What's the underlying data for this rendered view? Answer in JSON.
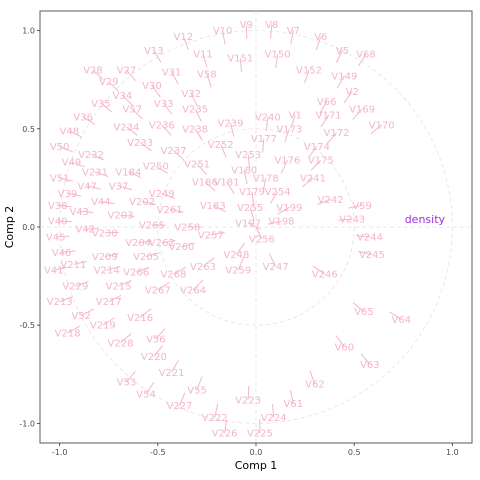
{
  "chart_data": {
    "type": "scatter",
    "title": "",
    "xlabel": "Comp 1",
    "ylabel": "Comp 2",
    "xlim": [
      -1.1,
      1.1
    ],
    "ylim": [
      -1.1,
      1.1
    ],
    "xticks": [
      "-1.0",
      "-0.5",
      "0.0",
      "0.5",
      "1.0"
    ],
    "yticks": [
      "-1.0",
      "-0.5",
      "0.0",
      "0.5",
      "1.0"
    ],
    "circles": [
      1.0,
      0.5
    ],
    "grid": false,
    "legend": "none",
    "colors": {
      "variables": "#f4b6c6",
      "highlight": "#9b30d9",
      "reference": "#e3e3e3",
      "panel_border": "#333333"
    },
    "highlight": {
      "name": "density",
      "x": 0.86,
      "y": 0.04
    },
    "points": [
      {
        "name": "V9",
        "x": -0.05,
        "y": 1.03
      },
      {
        "name": "V8",
        "x": 0.08,
        "y": 1.03
      },
      {
        "name": "V10",
        "x": -0.17,
        "y": 1.0
      },
      {
        "name": "V7",
        "x": 0.19,
        "y": 1.0
      },
      {
        "name": "V6",
        "x": 0.33,
        "y": 0.97
      },
      {
        "name": "V12",
        "x": -0.37,
        "y": 0.97
      },
      {
        "name": "V5",
        "x": 0.44,
        "y": 0.9
      },
      {
        "name": "V68",
        "x": 0.56,
        "y": 0.88
      },
      {
        "name": "V13",
        "x": -0.52,
        "y": 0.9
      },
      {
        "name": "V11",
        "x": -0.27,
        "y": 0.88
      },
      {
        "name": "V150",
        "x": 0.11,
        "y": 0.88
      },
      {
        "name": "V151",
        "x": -0.08,
        "y": 0.86
      },
      {
        "name": "V28",
        "x": -0.83,
        "y": 0.8
      },
      {
        "name": "V27",
        "x": -0.66,
        "y": 0.8
      },
      {
        "name": "V31",
        "x": -0.43,
        "y": 0.79
      },
      {
        "name": "V58",
        "x": -0.25,
        "y": 0.78
      },
      {
        "name": "V152",
        "x": 0.27,
        "y": 0.8
      },
      {
        "name": "V149",
        "x": 0.45,
        "y": 0.77
      },
      {
        "name": "V29",
        "x": -0.75,
        "y": 0.74
      },
      {
        "name": "V30",
        "x": -0.53,
        "y": 0.72
      },
      {
        "name": "V34",
        "x": -0.68,
        "y": 0.67
      },
      {
        "name": "V32",
        "x": -0.33,
        "y": 0.68
      },
      {
        "name": "V2",
        "x": 0.49,
        "y": 0.69
      },
      {
        "name": "V35",
        "x": -0.79,
        "y": 0.63
      },
      {
        "name": "V57",
        "x": -0.63,
        "y": 0.6
      },
      {
        "name": "V33",
        "x": -0.47,
        "y": 0.63
      },
      {
        "name": "V235",
        "x": -0.31,
        "y": 0.6
      },
      {
        "name": "V66",
        "x": 0.36,
        "y": 0.64
      },
      {
        "name": "V169",
        "x": 0.54,
        "y": 0.6
      },
      {
        "name": "V36",
        "x": -0.88,
        "y": 0.56
      },
      {
        "name": "V1",
        "x": 0.2,
        "y": 0.57
      },
      {
        "name": "V240",
        "x": 0.06,
        "y": 0.56
      },
      {
        "name": "V171",
        "x": 0.37,
        "y": 0.57
      },
      {
        "name": "V234",
        "x": -0.66,
        "y": 0.51
      },
      {
        "name": "V236",
        "x": -0.48,
        "y": 0.52
      },
      {
        "name": "V238",
        "x": -0.31,
        "y": 0.5
      },
      {
        "name": "V239",
        "x": -0.13,
        "y": 0.53
      },
      {
        "name": "V173",
        "x": 0.17,
        "y": 0.5
      },
      {
        "name": "V170",
        "x": 0.64,
        "y": 0.52
      },
      {
        "name": "V172",
        "x": 0.41,
        "y": 0.48
      },
      {
        "name": "V48",
        "x": -0.95,
        "y": 0.49
      },
      {
        "name": "V233",
        "x": -0.59,
        "y": 0.43
      },
      {
        "name": "V177",
        "x": 0.04,
        "y": 0.45
      },
      {
        "name": "V252",
        "x": -0.18,
        "y": 0.42
      },
      {
        "name": "V237",
        "x": -0.42,
        "y": 0.39
      },
      {
        "name": "V174",
        "x": 0.31,
        "y": 0.41
      },
      {
        "name": "V50",
        "x": -1.0,
        "y": 0.41
      },
      {
        "name": "V232",
        "x": -0.84,
        "y": 0.37
      },
      {
        "name": "V253",
        "x": -0.04,
        "y": 0.37
      },
      {
        "name": "V176",
        "x": 0.16,
        "y": 0.34
      },
      {
        "name": "V175",
        "x": 0.33,
        "y": 0.34
      },
      {
        "name": "V49",
        "x": -0.94,
        "y": 0.33
      },
      {
        "name": "V250",
        "x": -0.51,
        "y": 0.31
      },
      {
        "name": "V251",
        "x": -0.3,
        "y": 0.32
      },
      {
        "name": "V180",
        "x": -0.06,
        "y": 0.29
      },
      {
        "name": "V184",
        "x": -0.65,
        "y": 0.28
      },
      {
        "name": "V231",
        "x": -0.82,
        "y": 0.28
      },
      {
        "name": "V178",
        "x": 0.05,
        "y": 0.25
      },
      {
        "name": "V241",
        "x": 0.29,
        "y": 0.25
      },
      {
        "name": "V51",
        "x": -1.0,
        "y": 0.25
      },
      {
        "name": "V186",
        "x": -0.26,
        "y": 0.23
      },
      {
        "name": "V181",
        "x": -0.15,
        "y": 0.23
      },
      {
        "name": "V47",
        "x": -0.86,
        "y": 0.21
      },
      {
        "name": "V37",
        "x": -0.7,
        "y": 0.21
      },
      {
        "name": "V254",
        "x": 0.11,
        "y": 0.18
      },
      {
        "name": "V179",
        "x": -0.02,
        "y": 0.18
      },
      {
        "name": "V39",
        "x": -0.96,
        "y": 0.17
      },
      {
        "name": "V249",
        "x": -0.48,
        "y": 0.17
      },
      {
        "name": "V242",
        "x": 0.38,
        "y": 0.14
      },
      {
        "name": "V202",
        "x": -0.58,
        "y": 0.13
      },
      {
        "name": "V44",
        "x": -0.79,
        "y": 0.13
      },
      {
        "name": "V59",
        "x": 0.54,
        "y": 0.11
      },
      {
        "name": "V183",
        "x": -0.22,
        "y": 0.11
      },
      {
        "name": "V38",
        "x": -1.01,
        "y": 0.11
      },
      {
        "name": "V255",
        "x": -0.03,
        "y": 0.1
      },
      {
        "name": "V199",
        "x": 0.17,
        "y": 0.1
      },
      {
        "name": "V261",
        "x": -0.44,
        "y": 0.09
      },
      {
        "name": "V43",
        "x": -0.9,
        "y": 0.08
      },
      {
        "name": "V203",
        "x": -0.69,
        "y": 0.06
      },
      {
        "name": "V243",
        "x": 0.49,
        "y": 0.04
      },
      {
        "name": "V198",
        "x": 0.13,
        "y": 0.03
      },
      {
        "name": "V197",
        "x": -0.04,
        "y": 0.02
      },
      {
        "name": "V40",
        "x": -1.01,
        "y": 0.03
      },
      {
        "name": "V265",
        "x": -0.53,
        "y": 0.01
      },
      {
        "name": "V258",
        "x": -0.35,
        "y": 0.0
      },
      {
        "name": "V42",
        "x": -0.87,
        "y": -0.01
      },
      {
        "name": "V230",
        "x": -0.77,
        "y": -0.03
      },
      {
        "name": "V257",
        "x": -0.23,
        "y": -0.04
      },
      {
        "name": "V244",
        "x": 0.58,
        "y": -0.05
      },
      {
        "name": "V45",
        "x": -1.02,
        "y": -0.05
      },
      {
        "name": "V204",
        "x": -0.6,
        "y": -0.08
      },
      {
        "name": "V262",
        "x": -0.48,
        "y": -0.08
      },
      {
        "name": "V256",
        "x": 0.03,
        "y": -0.06
      },
      {
        "name": "V260",
        "x": -0.38,
        "y": -0.1
      },
      {
        "name": "V46",
        "x": -0.99,
        "y": -0.13
      },
      {
        "name": "V245",
        "x": 0.59,
        "y": -0.14
      },
      {
        "name": "V209",
        "x": -0.77,
        "y": -0.15
      },
      {
        "name": "V205",
        "x": -0.56,
        "y": -0.15
      },
      {
        "name": "V248",
        "x": -0.1,
        "y": -0.14
      },
      {
        "name": "V211",
        "x": -0.93,
        "y": -0.19
      },
      {
        "name": "V263",
        "x": -0.27,
        "y": -0.2
      },
      {
        "name": "V247",
        "x": 0.1,
        "y": -0.2
      },
      {
        "name": "V41",
        "x": -1.03,
        "y": -0.22
      },
      {
        "name": "V214",
        "x": -0.76,
        "y": -0.22
      },
      {
        "name": "V266",
        "x": -0.61,
        "y": -0.23
      },
      {
        "name": "V268",
        "x": -0.42,
        "y": -0.24
      },
      {
        "name": "V259",
        "x": -0.09,
        "y": -0.22
      },
      {
        "name": "V246",
        "x": 0.35,
        "y": -0.24
      },
      {
        "name": "V229",
        "x": -0.92,
        "y": -0.3
      },
      {
        "name": "V215",
        "x": -0.7,
        "y": -0.3
      },
      {
        "name": "V267",
        "x": -0.5,
        "y": -0.32
      },
      {
        "name": "V264",
        "x": -0.32,
        "y": -0.32
      },
      {
        "name": "V213",
        "x": -1.0,
        "y": -0.38
      },
      {
        "name": "V217",
        "x": -0.75,
        "y": -0.38
      },
      {
        "name": "V52",
        "x": -0.89,
        "y": -0.45
      },
      {
        "name": "V216",
        "x": -0.59,
        "y": -0.46
      },
      {
        "name": "V65",
        "x": 0.55,
        "y": -0.43
      },
      {
        "name": "V64",
        "x": 0.74,
        "y": -0.47
      },
      {
        "name": "V219",
        "x": -0.78,
        "y": -0.5
      },
      {
        "name": "V218",
        "x": -0.96,
        "y": -0.54
      },
      {
        "name": "V56",
        "x": -0.51,
        "y": -0.57
      },
      {
        "name": "V228",
        "x": -0.69,
        "y": -0.59
      },
      {
        "name": "V60",
        "x": 0.45,
        "y": -0.61
      },
      {
        "name": "V220",
        "x": -0.52,
        "y": -0.66
      },
      {
        "name": "V63",
        "x": 0.58,
        "y": -0.7
      },
      {
        "name": "V221",
        "x": -0.43,
        "y": -0.74
      },
      {
        "name": "V53",
        "x": -0.66,
        "y": -0.79
      },
      {
        "name": "V62",
        "x": 0.3,
        "y": -0.8
      },
      {
        "name": "V55",
        "x": -0.3,
        "y": -0.83
      },
      {
        "name": "V54",
        "x": -0.56,
        "y": -0.85
      },
      {
        "name": "V223",
        "x": -0.04,
        "y": -0.88
      },
      {
        "name": "V61",
        "x": 0.19,
        "y": -0.9
      },
      {
        "name": "V227",
        "x": -0.39,
        "y": -0.91
      },
      {
        "name": "V222",
        "x": -0.21,
        "y": -0.97
      },
      {
        "name": "V224",
        "x": 0.09,
        "y": -0.97
      },
      {
        "name": "V226",
        "x": -0.16,
        "y": -1.05
      },
      {
        "name": "V225",
        "x": 0.02,
        "y": -1.05
      }
    ]
  }
}
